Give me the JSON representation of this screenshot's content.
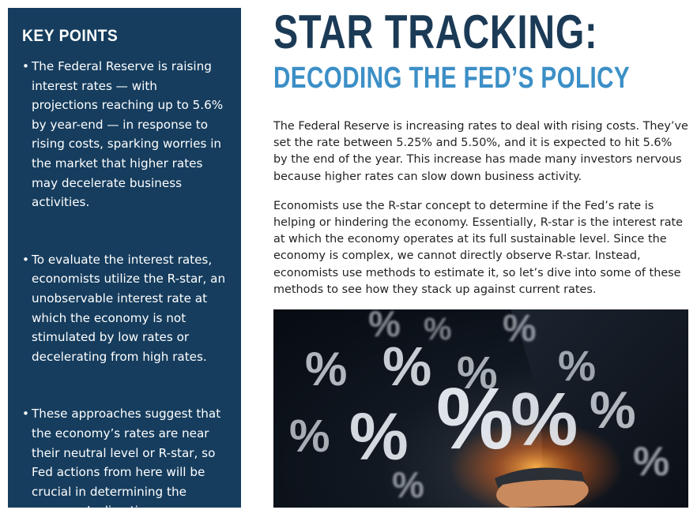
{
  "sidebar": {
    "heading": "KEY POINTS",
    "items": [
      "The Federal Reserve is raising interest rates — with projections reaching up to 5.6% by year-end — in response to rising costs, sparking worries in the market that higher rates may decelerate business activities.",
      "To evaluate the interest rates, economists utilize the R-star, an unobservable interest rate at which the economy is not stimulated by low rates or decelerating from high rates.",
      "These approaches suggest that the economy’s rates are near their neutral level or R-star, so Fed actions from here will be crucial in determining the economy’s direction."
    ]
  },
  "header": {
    "title": "STAR TRACKING:",
    "subtitle": "DECODING THE FED’S POLICY"
  },
  "body": {
    "paragraphs": [
      "The Federal Reserve is increasing rates to deal with rising costs. They’ve set the rate between 5.25% and 5.50%, and it is expected to hit 5.6% by the end of the year. This increase has made many investors nervous because higher rates can slow down business activity.",
      "Economists use the R-star concept to determine if the Fed’s rate is helping or hindering the economy. Essentially, R-star is the interest rate at which the economy operates at its full sustainable level. Since the economy is complex, we cannot directly observe R-star. Instead, economists use methods to estimate it, so let’s dive into some of these methods to see how they stack up against current rates."
    ]
  },
  "photo": {
    "symbol": "%"
  }
}
